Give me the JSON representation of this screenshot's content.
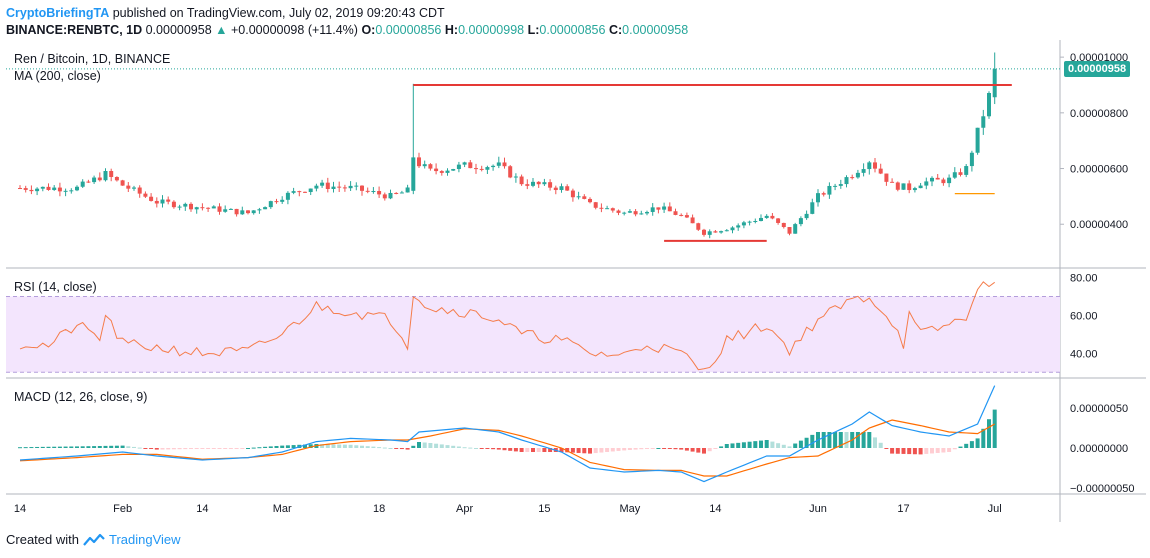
{
  "header": {
    "author": "CryptoBriefingTA",
    "published": "published on TradingView.com, July 02, 2019 09:20:43 CDT"
  },
  "symbol_line": {
    "symbol": "BINANCE:RENBTC, 1D",
    "last": "0.00000958",
    "change": "+0.00000098 (+11.4%)",
    "o_label": "O:",
    "o_value": "0.00000856",
    "h_label": "H:",
    "h_value": "0.00000998",
    "l_label": "L:",
    "l_value": "0.00000856",
    "c_label": "C:",
    "c_value": "0.00000958"
  },
  "panes": {
    "price_title": "Ren / Bitcoin, 1D, BINANCE",
    "ma_title": "MA (200, close)",
    "rsi_title": "RSI (14, close)",
    "macd_title": "MACD (12, 26, close, 9)",
    "last_price_tag": "0.00000958"
  },
  "footer": {
    "created_with": "Created with",
    "brand": "TradingView"
  },
  "colors": {
    "up": "#26a69a",
    "down": "#ef5350",
    "ma": "#ff9800",
    "rsi": "#f57c4a",
    "rsi_band": "#f3e5fd",
    "macd": "#2196f3",
    "signal": "#ff6d00",
    "hist_up_strong": "#26a69a",
    "hist_up_weak": "#b2dfdb",
    "hist_down_strong": "#ef5350",
    "hist_down_weak": "#ffcdd2",
    "annotation": "#e53935"
  },
  "chart_data": [
    {
      "type": "candlestick",
      "title": "Ren / Bitcoin, 1D, BINANCE",
      "ylim": [
        2.5e-06,
        1.04e-05
      ],
      "yticks": [
        "0.00001000",
        "0.00000800",
        "0.00000600",
        "0.00000400"
      ],
      "ytick_values": [
        1e-05,
        8e-06,
        6e-06,
        4e-06
      ],
      "xticks": [
        "14",
        "Feb",
        "14",
        "Mar",
        "18",
        "Apr",
        "15",
        "May",
        "14",
        "Jun",
        "17",
        "Jul"
      ],
      "xtick_days": [
        0,
        18,
        32,
        46,
        63,
        78,
        92,
        107,
        122,
        140,
        155,
        171
      ],
      "last_close": 9.58e-06,
      "ma200": {
        "start_day": 164,
        "values": [
          5.1e-06,
          5.1e-06,
          5.1e-06,
          5.1e-06,
          5.1e-06,
          5.1e-06,
          5.1e-06,
          5.1e-06
        ]
      },
      "anchors": [
        [
          0,
          5.3e-06
        ],
        [
          10,
          5.3e-06
        ],
        [
          15,
          5.8e-06
        ],
        [
          18,
          5.4e-06
        ],
        [
          24,
          4.8e-06
        ],
        [
          32,
          4.6e-06
        ],
        [
          40,
          4.4e-06
        ],
        [
          46,
          5e-06
        ],
        [
          52,
          5.4e-06
        ],
        [
          58,
          5.3e-06
        ],
        [
          65,
          5e-06
        ],
        [
          68,
          5.2e-06
        ],
        [
          69,
          6.3e-06
        ],
        [
          72,
          5.9e-06
        ],
        [
          78,
          6.1e-06
        ],
        [
          84,
          6.1e-06
        ],
        [
          88,
          5.5e-06
        ],
        [
          95,
          5.3e-06
        ],
        [
          100,
          4.7e-06
        ],
        [
          106,
          4.4e-06
        ],
        [
          112,
          4.6e-06
        ],
        [
          116,
          4.3e-06
        ],
        [
          120,
          3.7e-06
        ],
        [
          125,
          3.9e-06
        ],
        [
          131,
          4.3e-06
        ],
        [
          135,
          3.7e-06
        ],
        [
          140,
          5e-06
        ],
        [
          146,
          5.8e-06
        ],
        [
          149,
          6.3e-06
        ],
        [
          153,
          5.4e-06
        ],
        [
          156,
          5.3e-06
        ],
        [
          158,
          5.5e-06
        ],
        [
          163,
          5.6e-06
        ],
        [
          166,
          6e-06
        ],
        [
          168,
          7.3e-06
        ],
        [
          170,
          8.6e-06
        ],
        [
          171,
          9.6e-06
        ]
      ],
      "annotations": [
        {
          "label": "resistance",
          "from_day": 69,
          "to_day": 174,
          "value": 9e-06
        },
        {
          "label": "support",
          "from_day": 113,
          "to_day": 131,
          "value": 3.4e-06
        }
      ]
    },
    {
      "type": "line",
      "title": "RSI (14, close)",
      "ylim": [
        28,
        84
      ],
      "yticks": [
        "80.00",
        "60.00",
        "40.00"
      ],
      "ytick_values": [
        80,
        60,
        40
      ],
      "bands": [
        30,
        70
      ],
      "anchors": [
        [
          0,
          45
        ],
        [
          5,
          44
        ],
        [
          10,
          55
        ],
        [
          14,
          48
        ],
        [
          15,
          60
        ],
        [
          18,
          45
        ],
        [
          24,
          43
        ],
        [
          32,
          40
        ],
        [
          40,
          41
        ],
        [
          46,
          50
        ],
        [
          52,
          65
        ],
        [
          58,
          62
        ],
        [
          65,
          58
        ],
        [
          68,
          45
        ],
        [
          69,
          72
        ],
        [
          72,
          64
        ],
        [
          78,
          62
        ],
        [
          84,
          58
        ],
        [
          88,
          50
        ],
        [
          95,
          47
        ],
        [
          100,
          40
        ],
        [
          106,
          39
        ],
        [
          110,
          45
        ],
        [
          116,
          40
        ],
        [
          120,
          30
        ],
        [
          124,
          47
        ],
        [
          131,
          55
        ],
        [
          135,
          42
        ],
        [
          140,
          58
        ],
        [
          146,
          68
        ],
        [
          149,
          70
        ],
        [
          153,
          57
        ],
        [
          155,
          45
        ],
        [
          156,
          60
        ],
        [
          158,
          50
        ],
        [
          163,
          55
        ],
        [
          166,
          60
        ],
        [
          168,
          72
        ],
        [
          170,
          78
        ],
        [
          171,
          80
        ]
      ]
    },
    {
      "type": "macd",
      "title": "MACD (12, 26, close, 9)",
      "ylim": [
        -5.5e-07,
        8.5e-07
      ],
      "yticks": [
        "0.00000050",
        "0.00000000",
        "−0.00000050"
      ],
      "ytick_values": [
        5e-07,
        0,
        -5e-07
      ],
      "macd_anchors": [
        [
          0,
          -1.5e-07
        ],
        [
          10,
          -1e-07
        ],
        [
          18,
          -5e-08
        ],
        [
          24,
          -1e-07
        ],
        [
          32,
          -1.5e-07
        ],
        [
          40,
          -1.2e-07
        ],
        [
          46,
          -5e-08
        ],
        [
          52,
          8e-08
        ],
        [
          58,
          1.2e-07
        ],
        [
          65,
          1e-07
        ],
        [
          68,
          8e-08
        ],
        [
          70,
          2e-07
        ],
        [
          78,
          2.5e-07
        ],
        [
          84,
          2e-07
        ],
        [
          88,
          1e-07
        ],
        [
          95,
          -5e-08
        ],
        [
          100,
          -2.5e-07
        ],
        [
          106,
          -3e-07
        ],
        [
          112,
          -2.8e-07
        ],
        [
          116,
          -3e-07
        ],
        [
          120,
          -4.2e-07
        ],
        [
          124,
          -3e-07
        ],
        [
          131,
          -1e-07
        ],
        [
          135,
          -1e-07
        ],
        [
          140,
          1e-07
        ],
        [
          146,
          3e-07
        ],
        [
          149,
          4.5e-07
        ],
        [
          153,
          2.8e-07
        ],
        [
          158,
          2e-07
        ],
        [
          163,
          1.5e-07
        ],
        [
          168,
          3e-07
        ],
        [
          171,
          7.8e-07
        ]
      ],
      "signal_anchors": [
        [
          0,
          -1.6e-07
        ],
        [
          10,
          -1.2e-07
        ],
        [
          18,
          -8e-08
        ],
        [
          24,
          -8e-08
        ],
        [
          32,
          -1.4e-07
        ],
        [
          40,
          -1.2e-07
        ],
        [
          46,
          -8e-08
        ],
        [
          52,
          3e-08
        ],
        [
          58,
          8e-08
        ],
        [
          65,
          1e-07
        ],
        [
          68,
          1e-07
        ],
        [
          72,
          1.5e-07
        ],
        [
          78,
          2.4e-07
        ],
        [
          84,
          2.2e-07
        ],
        [
          88,
          1.5e-07
        ],
        [
          95,
          0.0
        ],
        [
          100,
          -1.8e-07
        ],
        [
          106,
          -2.7e-07
        ],
        [
          112,
          -2.8e-07
        ],
        [
          116,
          -2.8e-07
        ],
        [
          120,
          -3.5e-07
        ],
        [
          124,
          -3.5e-07
        ],
        [
          131,
          -2e-07
        ],
        [
          135,
          -1.2e-07
        ],
        [
          140,
          -1e-07
        ],
        [
          146,
          1e-07
        ],
        [
          149,
          2.5e-07
        ],
        [
          153,
          3.5e-07
        ],
        [
          158,
          2.8e-07
        ],
        [
          163,
          2e-07
        ],
        [
          168,
          1.8e-07
        ],
        [
          171,
          3e-07
        ]
      ]
    }
  ]
}
